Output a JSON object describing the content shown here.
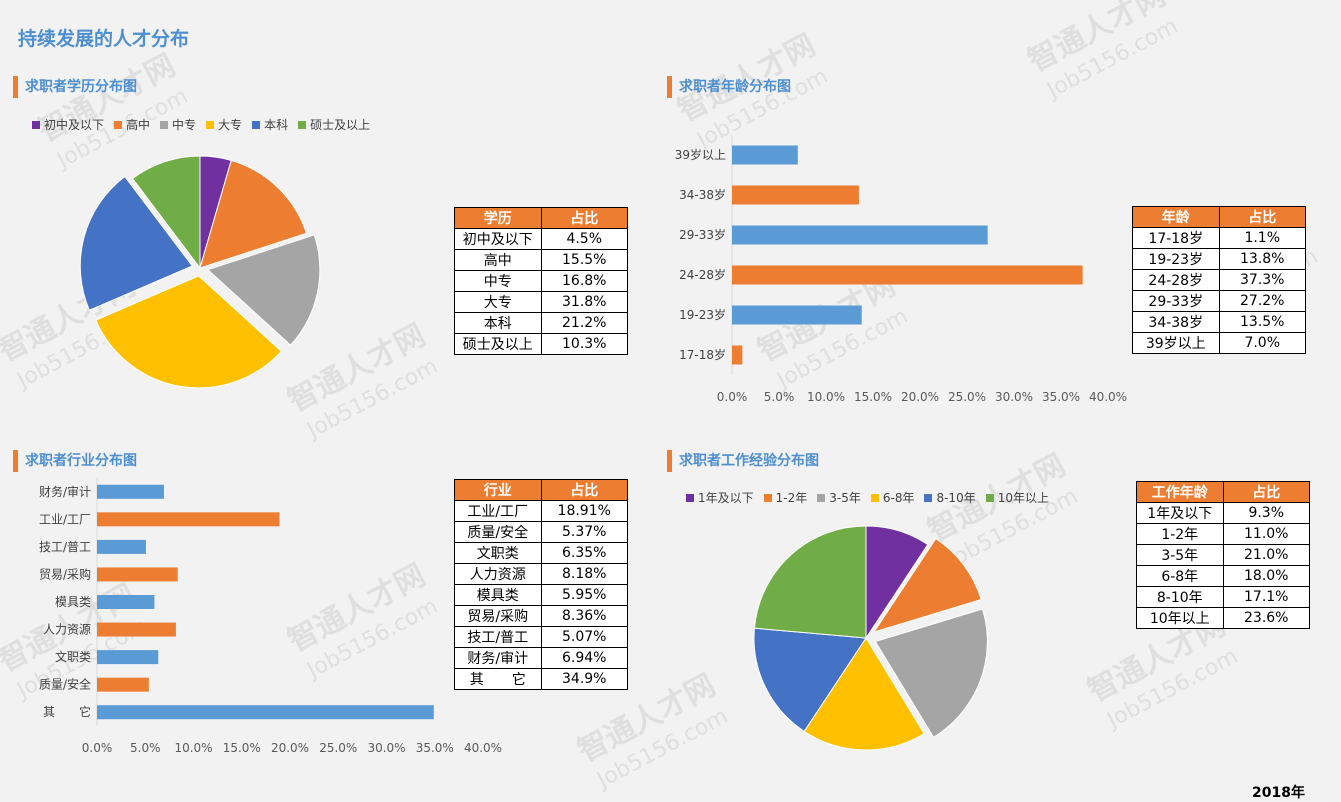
{
  "page": {
    "title": "持续发展的人才分布",
    "year": "2018年"
  },
  "watermark": {
    "main": "智通人才网",
    "sub": "Job5156.com"
  },
  "colors": {
    "purple": "#7030a0",
    "orange": "#ed7d31",
    "gray": "#a5a5a5",
    "yellow": "#ffc000",
    "blue": "#4472c4",
    "green": "#70ad47",
    "barBlue": "#5b9bd5",
    "header": "#ed7d31",
    "title": "#4e8fd0"
  },
  "education": {
    "title": "求职者学历分布图",
    "table": {
      "headers": [
        "学历",
        "占比"
      ],
      "rows": [
        [
          "初中及以下",
          "4.5%"
        ],
        [
          "高中",
          "15.5%"
        ],
        [
          "中专",
          "16.8%"
        ],
        [
          "大专",
          "31.8%"
        ],
        [
          "本科",
          "21.2%"
        ],
        [
          "硕士及以上",
          "10.3%"
        ]
      ]
    }
  },
  "age": {
    "title": "求职者年龄分布图",
    "table": {
      "headers": [
        "年龄",
        "占比"
      ],
      "rows": [
        [
          "17-18岁",
          "1.1%"
        ],
        [
          "19-23岁",
          "13.8%"
        ],
        [
          "24-28岁",
          "37.3%"
        ],
        [
          "29-33岁",
          "27.2%"
        ],
        [
          "34-38岁",
          "13.5%"
        ],
        [
          "39岁以上",
          "7.0%"
        ]
      ]
    }
  },
  "industry": {
    "title": "求职者行业分布图",
    "table": {
      "headers": [
        "行业",
        "占比"
      ],
      "rows": [
        [
          "工业/工厂",
          "18.91%"
        ],
        [
          "质量/安全",
          "5.37%"
        ],
        [
          "文职类",
          "6.35%"
        ],
        [
          "人力资源",
          "8.18%"
        ],
        [
          "模具类",
          "5.95%"
        ],
        [
          "贸易/采购",
          "8.36%"
        ],
        [
          "技工/普工",
          "5.07%"
        ],
        [
          "财务/审计",
          "6.94%"
        ],
        [
          "其　　它",
          "34.9%"
        ]
      ]
    }
  },
  "experience": {
    "title": "求职者工作经验分布图",
    "table": {
      "headers": [
        "工作年龄",
        "占比"
      ],
      "rows": [
        [
          "1年及以下",
          "9.3%"
        ],
        [
          "1-2年",
          "11.0%"
        ],
        [
          "3-5年",
          "21.0%"
        ],
        [
          "6-8年",
          "18.0%"
        ],
        [
          "8-10年",
          "17.1%"
        ],
        [
          "10年以上",
          "23.6%"
        ]
      ]
    }
  },
  "chart_data": [
    {
      "type": "pie",
      "title": "求职者学历分布图",
      "categories": [
        "初中及以下",
        "高中",
        "中专",
        "大专",
        "本科",
        "硕士及以上"
      ],
      "values": [
        4.5,
        15.5,
        16.8,
        31.8,
        21.2,
        10.3
      ],
      "colors": [
        "#7030a0",
        "#ed7d31",
        "#a5a5a5",
        "#ffc000",
        "#4472c4",
        "#70ad47"
      ],
      "exploded": [
        "中专",
        "大专",
        "本科"
      ],
      "legend": "top"
    },
    {
      "type": "bar",
      "orientation": "horizontal",
      "title": "求职者年龄分布图",
      "categories": [
        "17-18岁",
        "19-23岁",
        "24-28岁",
        "29-33岁",
        "34-38岁",
        "39岁以上"
      ],
      "values": [
        1.1,
        13.8,
        37.3,
        27.2,
        13.5,
        7.0
      ],
      "xlim": [
        0,
        40
      ],
      "xticks": [
        "0.0%",
        "5.0%",
        "10.0%",
        "15.0%",
        "20.0%",
        "25.0%",
        "30.0%",
        "35.0%",
        "40.0%"
      ],
      "colors": [
        "#ed7d31",
        "#5b9bd5"
      ]
    },
    {
      "type": "bar",
      "orientation": "horizontal",
      "title": "求职者行业分布图",
      "categories": [
        "其　　它",
        "质量/安全",
        "文职类",
        "人力资源",
        "模具类",
        "贸易/采购",
        "技工/普工",
        "工业/工厂",
        "财务/审计"
      ],
      "values": [
        34.9,
        5.37,
        6.35,
        8.18,
        5.95,
        8.36,
        5.07,
        18.91,
        6.94
      ],
      "xlim": [
        0,
        40
      ],
      "xticks": [
        "0.0%",
        "5.0%",
        "10.0%",
        "15.0%",
        "20.0%",
        "25.0%",
        "30.0%",
        "35.0%",
        "40.0%"
      ],
      "colors": [
        "#5b9bd5",
        "#ed7d31"
      ]
    },
    {
      "type": "pie",
      "title": "求职者工作经验分布图",
      "categories": [
        "1年及以下",
        "1-2年",
        "3-5年",
        "6-8年",
        "8-10年",
        "10年以上"
      ],
      "values": [
        9.3,
        11.0,
        21.0,
        18.0,
        17.1,
        23.6
      ],
      "colors": [
        "#7030a0",
        "#ed7d31",
        "#a5a5a5",
        "#ffc000",
        "#4472c4",
        "#70ad47"
      ],
      "exploded": [
        "1-2年",
        "3-5年"
      ],
      "legend": "top"
    }
  ]
}
